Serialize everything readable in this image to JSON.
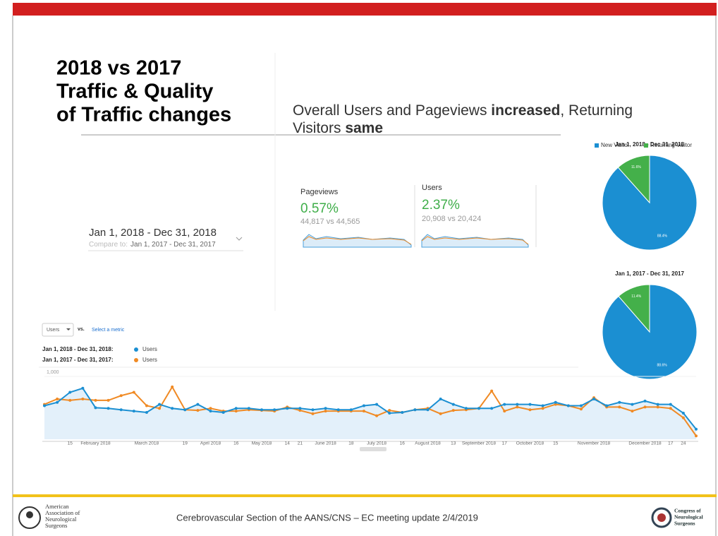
{
  "header": {
    "title": [
      "2018 vs 2017",
      "Traffic & Quality",
      "of Traffic changes"
    ],
    "subtitle": [
      [
        {
          "text": "Overall Users and Pageviews ",
          "bold": false
        },
        {
          "text": "increased",
          "bold": true
        },
        {
          "text": ", Returning",
          "bold": false
        }
      ],
      [
        {
          "text": "Visitors ",
          "bold": false
        },
        {
          "text": "same",
          "bold": true
        }
      ]
    ]
  },
  "date_range": {
    "label": "Jan 1, 2018 - Dec 31, 2018",
    "compare_prefix": "Compare to:",
    "compare": "Jan 1, 2017 - Dec 31, 2017"
  },
  "metrics": [
    {
      "name": "Pageviews",
      "change": "0.57%",
      "detail": "44,817 vs 44,565"
    },
    {
      "name": "Users",
      "change": "2.37%",
      "detail": "20,908 vs 20,424"
    }
  ],
  "chart_data": [
    {
      "type": "pie",
      "title": "Jan 1, 2018 - Dec 31, 2018",
      "categories": [
        "New Visitor",
        "Returning Visitor"
      ],
      "colors": [
        "#1b8fd2",
        "#44b04a"
      ],
      "values": [
        88.4,
        11.6
      ],
      "value_labels": [
        "88.4%",
        "11.6%"
      ]
    },
    {
      "type": "pie",
      "title": "Jan 1, 2017 - Dec 31, 2017",
      "colors": [
        "#1b8fd2",
        "#44b04a"
      ],
      "values": [
        88.6,
        11.4
      ],
      "value_labels": [
        "88.6%",
        "11.4%"
      ]
    },
    {
      "type": "line",
      "metric": "Users",
      "vs": "vs.",
      "select": "Select a metric",
      "categories": [
        null,
        null,
        "15",
        null,
        "February 2018",
        null,
        null,
        null,
        "March 2018",
        null,
        null,
        "19",
        null,
        "April 2018",
        null,
        "16",
        null,
        "May 2018",
        null,
        "14",
        "21",
        null,
        "June 2018",
        null,
        "18",
        null,
        "July 2018",
        null,
        "16",
        null,
        "August 2018",
        null,
        "13",
        null,
        "September 2018",
        null,
        "17",
        null,
        "October 2018",
        null,
        "15",
        null,
        null,
        "November 2018",
        null,
        null,
        null,
        "December 2018",
        null,
        "17",
        "24",
        null
      ],
      "ylim": [
        0,
        1000
      ],
      "yticks": [
        {
          "value": 1000,
          "label": "1,000"
        }
      ],
      "series": [
        {
          "name": "Jan 1, 2018 - Dec 31, 2018:",
          "label": "Users",
          "color": "#1b8fd2",
          "values": [
            500,
            550,
            700,
            760,
            470,
            460,
            440,
            420,
            400,
            520,
            460,
            440,
            520,
            420,
            400,
            460,
            460,
            440,
            440,
            460,
            460,
            440,
            460,
            440,
            440,
            500,
            520,
            390,
            400,
            440,
            440,
            600,
            520,
            460,
            460,
            460,
            520,
            520,
            520,
            500,
            550,
            500,
            500,
            600,
            500,
            550,
            520,
            570,
            520,
            520,
            390,
            150
          ]
        },
        {
          "name": "Jan 1, 2017 - Dec 31, 2017:",
          "label": "Users",
          "color": "#f08a24",
          "values": [
            520,
            600,
            580,
            600,
            580,
            580,
            650,
            700,
            500,
            460,
            780,
            440,
            430,
            460,
            420,
            420,
            440,
            430,
            420,
            480,
            430,
            380,
            420,
            420,
            420,
            420,
            350,
            430,
            400,
            440,
            460,
            380,
            430,
            440,
            460,
            720,
            420,
            480,
            440,
            460,
            520,
            500,
            450,
            620,
            480,
            480,
            420,
            480,
            480,
            460,
            320,
            50
          ]
        }
      ]
    }
  ],
  "footer": {
    "left_logo": [
      "American",
      "Association of",
      "Neurological",
      "Surgeons"
    ],
    "text": "Cerebrovascular Section of the AANS/CNS – EC meeting update 2/4/2019",
    "right_logo": [
      "Congress of",
      "Neurological",
      "Surgeons"
    ]
  }
}
